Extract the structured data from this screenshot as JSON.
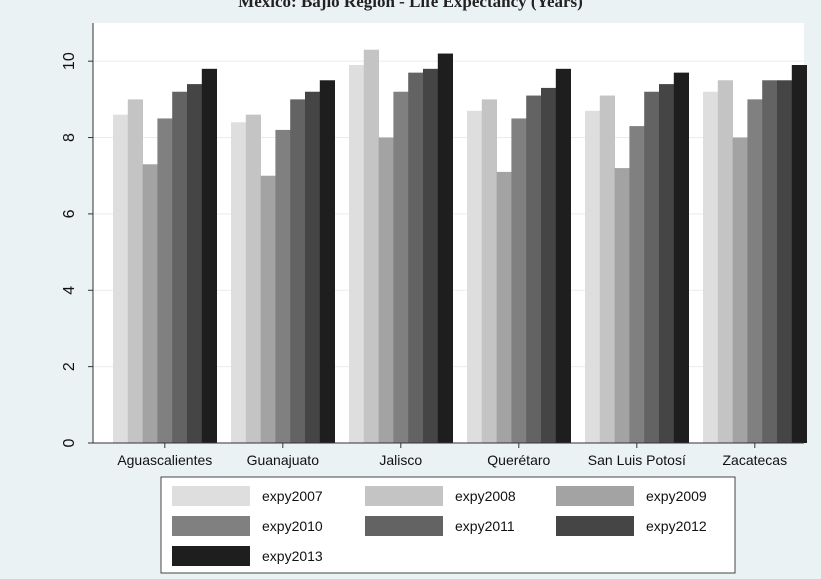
{
  "chart_data": {
    "type": "bar",
    "title": "Mexico: Bajío Region - Life Expectancy (Years)",
    "xlabel": "",
    "ylabel": "",
    "ylim": [
      0,
      11
    ],
    "yticks": [
      "0",
      "2",
      "4",
      "6",
      "8",
      "10"
    ],
    "categories": [
      "Aguascalientes",
      "Guanajuato",
      "Jalisco",
      "Querétaro",
      "San Luis Potosí",
      "Zacatecas"
    ],
    "series": [
      {
        "name": "expy2007",
        "color": "#dedede",
        "values": [
          8.6,
          8.4,
          9.9,
          8.7,
          8.7,
          9.2
        ]
      },
      {
        "name": "expy2008",
        "color": "#c4c4c4",
        "values": [
          9.0,
          8.6,
          10.3,
          9.0,
          9.1,
          9.5
        ]
      },
      {
        "name": "expy2009",
        "color": "#a3a3a3",
        "values": [
          7.3,
          7.0,
          8.0,
          7.1,
          7.2,
          8.0
        ]
      },
      {
        "name": "expy2010",
        "color": "#808080",
        "values": [
          8.5,
          8.2,
          9.2,
          8.5,
          8.3,
          9.0
        ]
      },
      {
        "name": "expy2011",
        "color": "#636363",
        "values": [
          9.2,
          9.0,
          9.7,
          9.1,
          9.2,
          9.5
        ]
      },
      {
        "name": "expy2012",
        "color": "#454545",
        "values": [
          9.4,
          9.2,
          9.8,
          9.3,
          9.4,
          9.5
        ]
      },
      {
        "name": "expy2013",
        "color": "#1e1e1e",
        "values": [
          9.8,
          9.5,
          10.2,
          9.8,
          9.7,
          9.9
        ]
      }
    ],
    "grid": true,
    "legend_position": "bottom"
  }
}
